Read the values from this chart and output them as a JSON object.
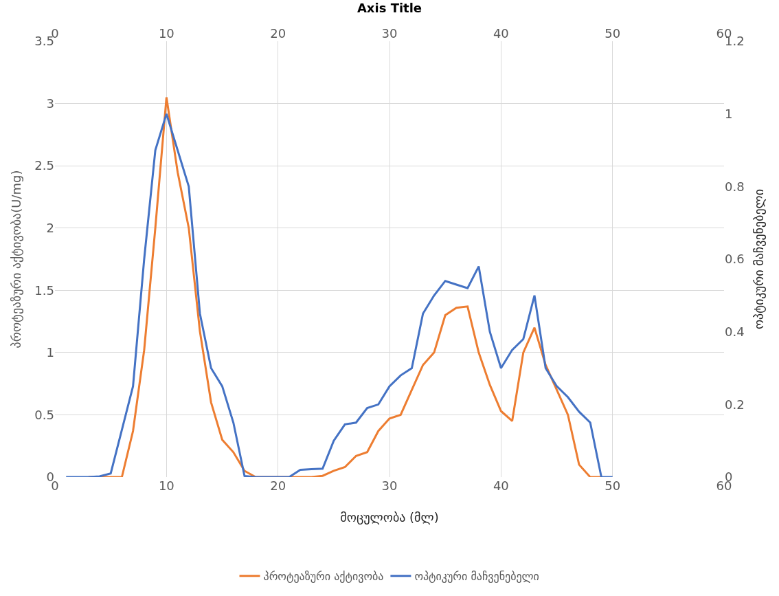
{
  "chart_data": {
    "type": "line",
    "xlabel": "მოცულობა (მლ)",
    "ylabel": "პროტეაზური აქტივობა(U/mg)",
    "y2label": "ოპტიკური მაჩვენებელი",
    "x2label": "Axis Title",
    "x": [
      1,
      2,
      3,
      4,
      5,
      6,
      7,
      8,
      9,
      10,
      11,
      12,
      13,
      14,
      15,
      16,
      17,
      18,
      19,
      20,
      21,
      22,
      23,
      24,
      25,
      26,
      27,
      28,
      29,
      30,
      31,
      32,
      33,
      34,
      35,
      36,
      37,
      38,
      39,
      40,
      41,
      42,
      43,
      44,
      45,
      46,
      47,
      48,
      49,
      50
    ],
    "series": [
      {
        "name": "პროტეაზური აქტივობა",
        "color": "#ed7d31",
        "values": [
          null,
          null,
          0,
          0,
          0,
          0,
          0.37,
          1.02,
          2.0,
          3.05,
          2.45,
          2.0,
          1.17,
          0.6,
          0.3,
          0.2,
          0.05,
          0,
          0,
          0,
          0,
          0,
          0,
          0.01,
          0.05,
          0.08,
          0.17,
          0.2,
          0.37,
          0.47,
          0.5,
          0.7,
          0.9,
          1.0,
          1.3,
          1.36,
          1.37,
          1.0,
          0.74,
          0.53,
          0.45,
          1.0,
          1.2,
          0.9,
          0.7,
          0.5,
          0.1,
          0.0,
          0,
          null
        ]
      },
      {
        "name": "ოპტიკური მაჩვენებელი",
        "color": "#4472c4",
        "axis": "y2",
        "values": [
          0,
          0,
          0,
          0.002,
          0.01,
          0.13,
          0.25,
          0.6,
          0.9,
          1.0,
          0.9,
          0.8,
          0.45,
          0.3,
          0.25,
          0.15,
          0.003,
          0,
          0,
          0,
          0,
          0.02,
          0.022,
          0.023,
          0.1,
          0.145,
          0.15,
          0.19,
          0.2,
          0.25,
          0.28,
          0.3,
          0.45,
          0.5,
          0.54,
          0.53,
          0.52,
          0.58,
          0.4,
          0.3,
          0.35,
          0.38,
          0.5,
          0.3,
          0.25,
          0.22,
          0.18,
          0.15,
          0,
          0
        ]
      }
    ],
    "xlim": [
      0,
      60
    ],
    "xticks": [
      0,
      10,
      20,
      30,
      40,
      50,
      60
    ],
    "x2lim": [
      0,
      60
    ],
    "x2ticks": [
      0,
      10,
      20,
      30,
      40,
      50,
      60
    ],
    "ylim": [
      0,
      3.5
    ],
    "yticks": [
      0,
      0.5,
      1,
      1.5,
      2,
      2.5,
      3,
      3.5
    ],
    "y2lim": [
      0,
      1.2
    ],
    "y2ticks": [
      0,
      0.2,
      0.4,
      0.6,
      0.8,
      1,
      1.2
    ],
    "grid": true,
    "legend": "bottom",
    "marker": "none",
    "line_style": "solid"
  }
}
